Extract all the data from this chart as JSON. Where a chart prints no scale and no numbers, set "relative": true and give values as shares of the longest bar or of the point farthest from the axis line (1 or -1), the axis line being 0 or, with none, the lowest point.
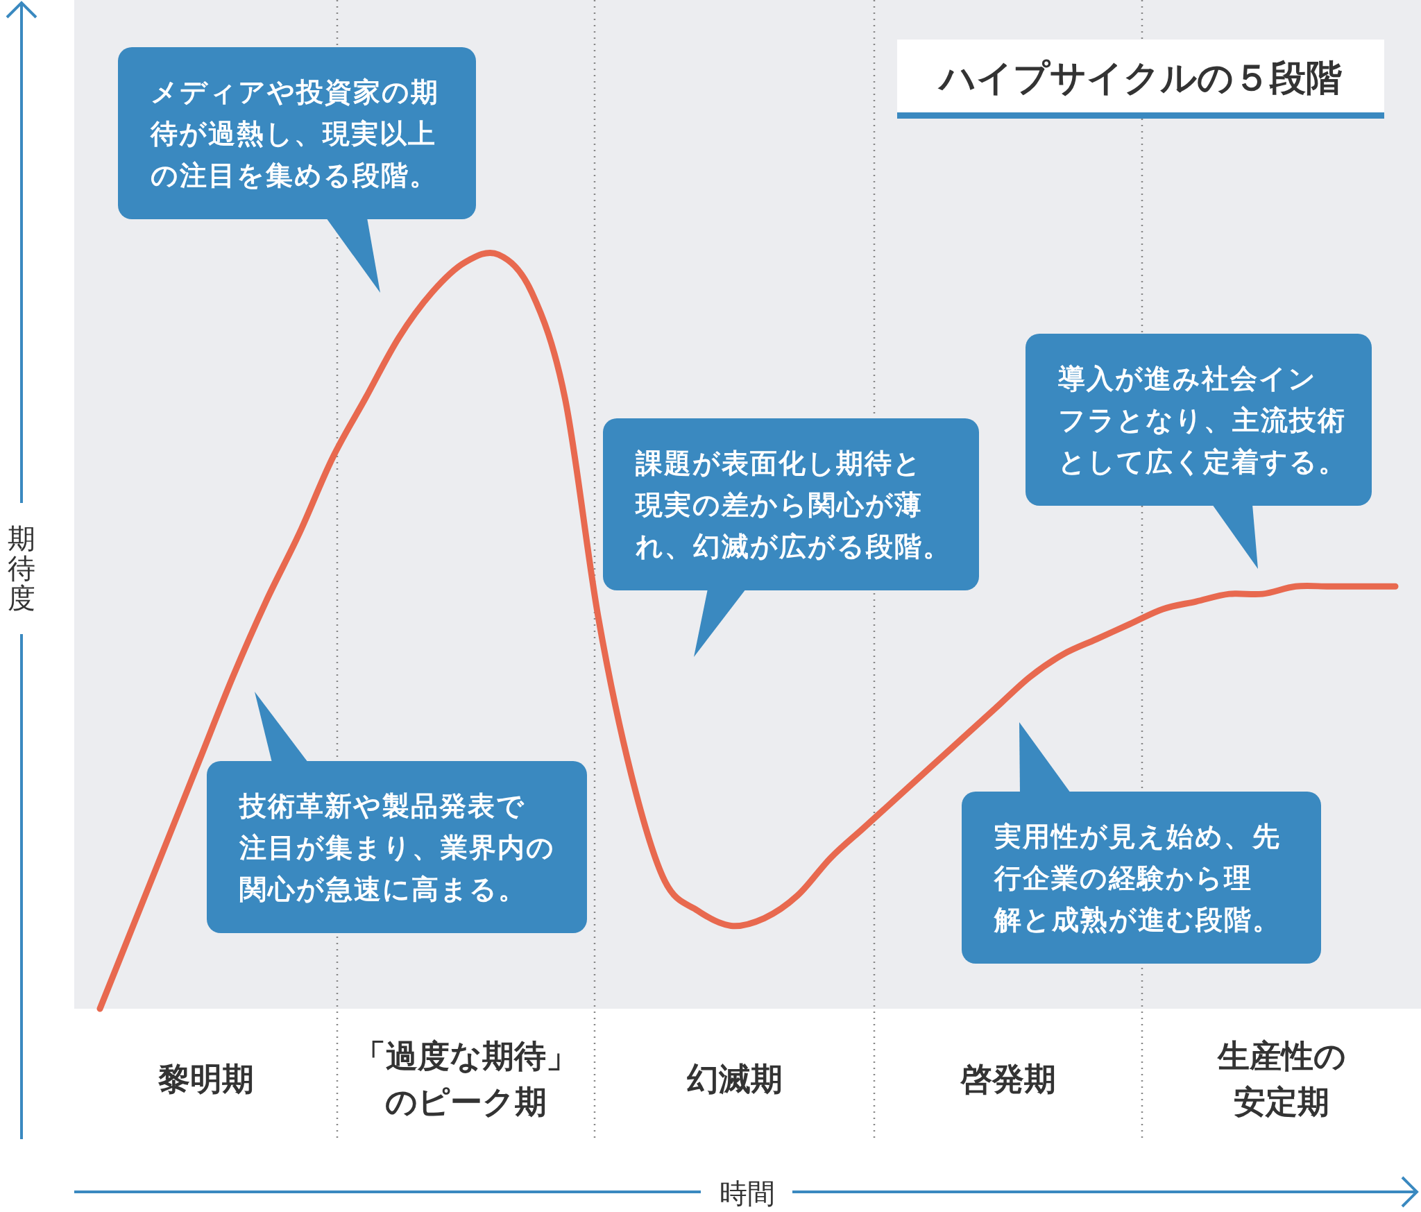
{
  "chart_data": {
    "type": "line",
    "relative": true,
    "title": "ハイプサイクルの５段階",
    "ylabel": "期待度",
    "categories": [
      null,
      null,
      null,
      null,
      null,
      null,
      null,
      null,
      null,
      null,
      null,
      null,
      null,
      null,
      null,
      null,
      null,
      null,
      null,
      null,
      null,
      null,
      null,
      null,
      null,
      null,
      null,
      null,
      null,
      null,
      null,
      null,
      null,
      null,
      null,
      null,
      null,
      null,
      null,
      null
    ],
    "series": [
      {
        "color": "#e8694f",
        "values": [
          0,
          0.11,
          0.22,
          0.33,
          0.44,
          0.54,
          0.63,
          0.73,
          0.81,
          0.89,
          0.95,
          0.99,
          1,
          0.95,
          0.81,
          0.52,
          0.31,
          0.17,
          0.13,
          0.11,
          0.12,
          0.15,
          0.2,
          0.24,
          0.28,
          0.32,
          0.36,
          0.4,
          0.44,
          0.47,
          0.49,
          0.51,
          0.53,
          0.54,
          0.55,
          0.55,
          0.56,
          0.56,
          0.56,
          0.56
        ]
      }
    ],
    "annotations": [
      "技術革新や製品発表で注目が集まり、業界内の関心が急速に高まる。",
      "メディアや投資家の期待が過熱し、現実以上の注目を集める段階。",
      "課題が表面化し期待と現実の差から関心が薄れ、幻滅が広がる段階。",
      "実用性が見え始め、先行企業の経験から理解と成熟が進む段階。",
      "導入が進み社会インフラとなり、主流技術として広く定着する。",
      "黎明期",
      "「過度な期待」のピーク期",
      "幻滅期",
      "啓発期",
      "生産性の安定期",
      "時間"
    ]
  }
}
